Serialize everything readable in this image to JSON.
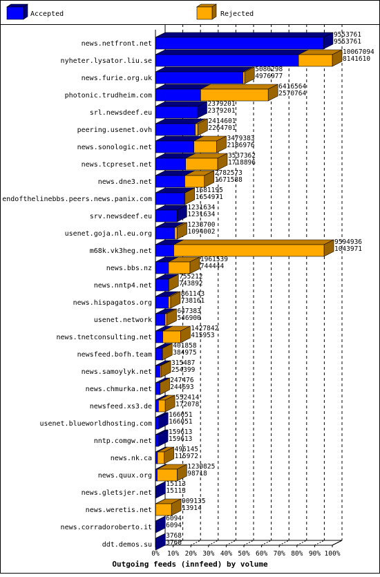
{
  "chart_data": {
    "type": "bar",
    "title": "Outgoing feeds (innfeed) by volume",
    "legend_placement": "top",
    "series": [
      {
        "name": "Accepted",
        "color": "#0000ff"
      },
      {
        "name": "Rejected",
        "color": "#ffaa00"
      }
    ],
    "x_ticks": [
      "0%",
      "10%",
      "20%",
      "30%",
      "40%",
      "50%",
      "60%",
      "70%",
      "80%",
      "90%",
      "100%"
    ],
    "x_max_value": 10067094,
    "rows": [
      {
        "name": "news.netfront.net",
        "offered": 9553761,
        "accepted": 9553761
      },
      {
        "name": "nyheter.lysator.liu.se",
        "offered": 10067094,
        "accepted": 8141610
      },
      {
        "name": "news.furie.org.uk",
        "offered": 5080298,
        "accepted": 4976977
      },
      {
        "name": "photonic.trudheim.com",
        "offered": 6416564,
        "accepted": 2570764
      },
      {
        "name": "srl.newsdeef.eu",
        "offered": 2379201,
        "accepted": 2379201
      },
      {
        "name": "peering.usenet.ovh",
        "offered": 2414601,
        "accepted": 2264701
      },
      {
        "name": "news.sonologic.net",
        "offered": 3479383,
        "accepted": 2186976
      },
      {
        "name": "news.tcpreset.net",
        "offered": 3537362,
        "accepted": 1718896
      },
      {
        "name": "news.dne3.net",
        "offered": 2782573,
        "accepted": 1671588
      },
      {
        "name": "endofthelinebbs.peers.news.panix.com",
        "offered": 1681195,
        "accepted": 1654971
      },
      {
        "name": "srv.newsdeef.eu",
        "offered": 1231634,
        "accepted": 1231634
      },
      {
        "name": "usenet.goja.nl.eu.org",
        "offered": 1238700,
        "accepted": 1094002
      },
      {
        "name": "m68k.vk3heg.net",
        "offered": 9594936,
        "accepted": 1043971
      },
      {
        "name": "news.bbs.nz",
        "offered": 1961539,
        "accepted": 744444
      },
      {
        "name": "news.nntp4.net",
        "offered": 755212,
        "accepted": 743892
      },
      {
        "name": "news.hispagatos.org",
        "offered": 861143,
        "accepted": 738161
      },
      {
        "name": "usenet.network",
        "offered": 647383,
        "accepted": 546900
      },
      {
        "name": "news.tnetconsulting.net",
        "offered": 1427842,
        "accepted": 415953
      },
      {
        "name": "newsfeed.bofh.team",
        "offered": 401858,
        "accepted": 384975
      },
      {
        "name": "news.samoylyk.net",
        "offered": 315487,
        "accepted": 254399
      },
      {
        "name": "news.chmurka.net",
        "offered": 247476,
        "accepted": 244693
      },
      {
        "name": "newsfeed.xs3.de",
        "offered": 552414,
        "accepted": 172078
      },
      {
        "name": "usenet.blueworldhosting.com",
        "offered": 166051,
        "accepted": 166051
      },
      {
        "name": "nntp.comgw.net",
        "offered": 159613,
        "accepted": 159613
      },
      {
        "name": "news.nk.ca",
        "offered": 496145,
        "accepted": 115972
      },
      {
        "name": "news.quux.org",
        "offered": 1230825,
        "accepted": 98718
      },
      {
        "name": "news.gletsjer.net",
        "offered": 15113,
        "accepted": 15113
      },
      {
        "name": "news.weretis.net",
        "offered": 909135,
        "accepted": 13914
      },
      {
        "name": "news.corradoroberto.it",
        "offered": 6094,
        "accepted": 6094
      },
      {
        "name": "ddt.demos.su",
        "offered": 3768,
        "accepted": 3768
      }
    ]
  }
}
